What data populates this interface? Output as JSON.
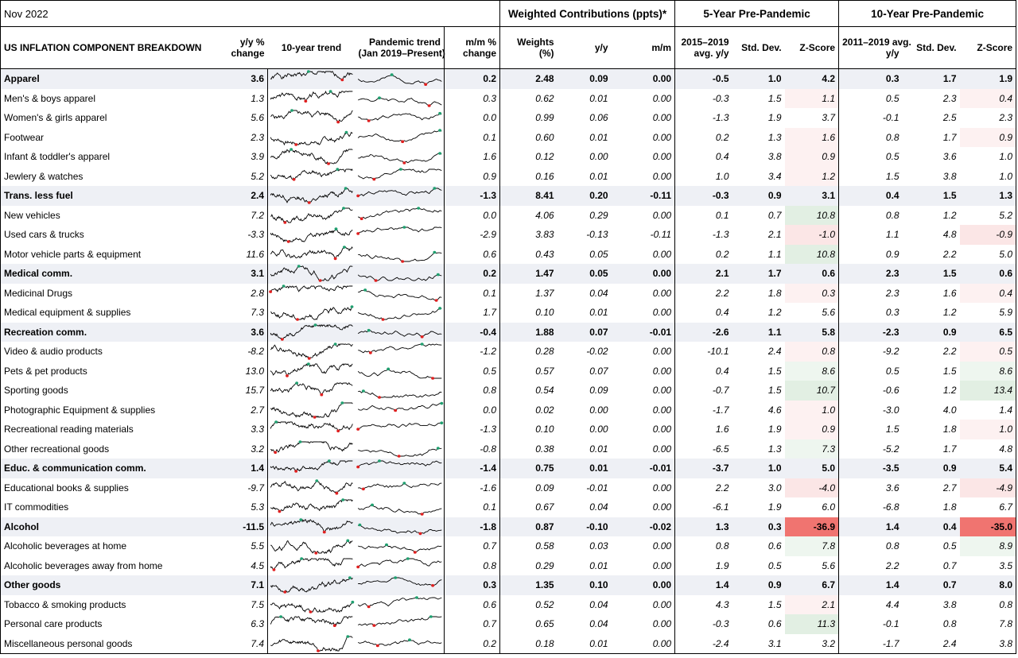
{
  "title": {
    "date": "Nov 2022",
    "group_weighted": "Weighted Contributions (ppts)*",
    "group_5y": "5-Year Pre-Pandemic",
    "group_10y": "10-Year Pre-Pandemic"
  },
  "headers": {
    "label": "US INFLATION COMPONENT BREAKDOWN",
    "yoy_l1": "y/y %",
    "yoy_l2": "change",
    "trend10": "10-year trend",
    "pand_l1": "Pandemic trend",
    "pand_l2": "(Jan 2019–Present)",
    "mom_l1": "m/m %",
    "mom_l2": "change",
    "weights_l1": "Weights",
    "weights_l2": "(%)",
    "wyy": "y/y",
    "wmm": "m/m",
    "avg5_l1": "2015–2019",
    "avg5_l2": "avg. y/y",
    "sd5": "Std. Dev.",
    "z5": "Z-Score",
    "avg10_l1": "2011–2019 avg.",
    "avg10_l2": "y/y",
    "sd10": "Std. Dev.",
    "z10": "Z-Score"
  },
  "z_colors": {
    "strong_red": "#f07470",
    "light_red": "#fbe6e6",
    "faint_red": "#fdf1f1",
    "light_green": "#e2efe3",
    "faint_green": "#eef6ef",
    "spark_line": "#000000",
    "spark_low": "#e02020",
    "spark_high": "#20a070"
  },
  "rows": [
    {
      "name": "Apparel",
      "type": "cat",
      "yoy": "3.6",
      "mom": "0.2",
      "w": "2.48",
      "wyy": "0.09",
      "wmm": "0.00",
      "a5": "-0.5",
      "s5": "1.0",
      "z5": "4.2",
      "a10": "0.3",
      "s10": "1.7",
      "z10": "1.9",
      "c5": "",
      "c10": ""
    },
    {
      "name": "Men's & boys apparel",
      "type": "sub",
      "yoy": "1.3",
      "mom": "0.3",
      "w": "0.62",
      "wyy": "0.01",
      "wmm": "0.00",
      "a5": "-0.3",
      "s5": "1.5",
      "z5": "1.1",
      "a10": "0.5",
      "s10": "2.3",
      "z10": "0.4",
      "c5": "fr",
      "c10": "fr"
    },
    {
      "name": "Women's & girls apparel",
      "type": "sub",
      "yoy": "5.6",
      "mom": "0.0",
      "w": "0.99",
      "wyy": "0.06",
      "wmm": "0.00",
      "a5": "-1.3",
      "s5": "1.9",
      "z5": "3.7",
      "a10": "-0.1",
      "s10": "2.5",
      "z10": "2.3",
      "c5": "",
      "c10": ""
    },
    {
      "name": "Footwear",
      "type": "sub",
      "yoy": "2.3",
      "mom": "0.1",
      "w": "0.60",
      "wyy": "0.01",
      "wmm": "0.00",
      "a5": "0.2",
      "s5": "1.3",
      "z5": "1.6",
      "a10": "0.8",
      "s10": "1.7",
      "z10": "0.9",
      "c5": "fr",
      "c10": "fr"
    },
    {
      "name": "Infant & toddler's apparel",
      "type": "sub",
      "yoy": "3.9",
      "mom": "1.6",
      "w": "0.12",
      "wyy": "0.00",
      "wmm": "0.00",
      "a5": "0.4",
      "s5": "3.8",
      "z5": "0.9",
      "a10": "0.5",
      "s10": "3.6",
      "z10": "1.0",
      "c5": "fr",
      "c10": ""
    },
    {
      "name": "Jewlery & watches",
      "type": "sub",
      "yoy": "5.2",
      "mom": "0.9",
      "w": "0.16",
      "wyy": "0.01",
      "wmm": "0.00",
      "a5": "1.0",
      "s5": "3.4",
      "z5": "1.2",
      "a10": "1.5",
      "s10": "3.8",
      "z10": "1.0",
      "c5": "fr",
      "c10": ""
    },
    {
      "name": "Trans. less fuel",
      "type": "cat",
      "yoy": "2.4",
      "mom": "-1.3",
      "w": "8.41",
      "wyy": "0.20",
      "wmm": "-0.11",
      "a5": "-0.3",
      "s5": "0.9",
      "z5": "3.1",
      "a10": "0.4",
      "s10": "1.5",
      "z10": "1.3",
      "c5": "",
      "c10": ""
    },
    {
      "name": "New vehicles",
      "type": "sub",
      "yoy": "7.2",
      "mom": "0.0",
      "w": "4.06",
      "wyy": "0.29",
      "wmm": "0.00",
      "a5": "0.1",
      "s5": "0.7",
      "z5": "10.8",
      "a10": "0.8",
      "s10": "1.2",
      "z10": "5.2",
      "c5": "lg",
      "c10": ""
    },
    {
      "name": "Used cars & trucks",
      "type": "sub",
      "yoy": "-3.3",
      "mom": "-2.9",
      "w": "3.83",
      "wyy": "-0.13",
      "wmm": "-0.11",
      "a5": "-1.3",
      "s5": "2.1",
      "z5": "-1.0",
      "a10": "1.1",
      "s10": "4.8",
      "z10": "-0.9",
      "c5": "lr",
      "c10": "lr"
    },
    {
      "name": "Motor vehicle parts & equipment",
      "type": "sub",
      "yoy": "11.6",
      "mom": "0.6",
      "w": "0.43",
      "wyy": "0.05",
      "wmm": "0.00",
      "a5": "0.2",
      "s5": "1.1",
      "z5": "10.8",
      "a10": "0.9",
      "s10": "2.2",
      "z10": "5.0",
      "c5": "lg",
      "c10": ""
    },
    {
      "name": "Medical comm.",
      "type": "cat",
      "yoy": "3.1",
      "mom": "0.2",
      "w": "1.47",
      "wyy": "0.05",
      "wmm": "0.00",
      "a5": "2.1",
      "s5": "1.7",
      "z5": "0.6",
      "a10": "2.3",
      "s10": "1.5",
      "z10": "0.6",
      "c5": "",
      "c10": ""
    },
    {
      "name": "Medicinal Drugs",
      "type": "sub",
      "yoy": "2.8",
      "mom": "0.1",
      "w": "1.37",
      "wyy": "0.04",
      "wmm": "0.00",
      "a5": "2.2",
      "s5": "1.8",
      "z5": "0.3",
      "a10": "2.3",
      "s10": "1.6",
      "z10": "0.4",
      "c5": "fr",
      "c10": "fr"
    },
    {
      "name": "Medical equipment & supplies",
      "type": "sub",
      "yoy": "7.3",
      "mom": "1.7",
      "w": "0.10",
      "wyy": "0.01",
      "wmm": "0.00",
      "a5": "0.4",
      "s5": "1.2",
      "z5": "5.6",
      "a10": "0.3",
      "s10": "1.2",
      "z10": "5.9",
      "c5": "",
      "c10": ""
    },
    {
      "name": "Recreation comm.",
      "type": "cat",
      "yoy": "3.6",
      "mom": "-0.4",
      "w": "1.88",
      "wyy": "0.07",
      "wmm": "-0.01",
      "a5": "-2.6",
      "s5": "1.1",
      "z5": "5.8",
      "a10": "-2.3",
      "s10": "0.9",
      "z10": "6.5",
      "c5": "",
      "c10": ""
    },
    {
      "name": "Video & audio products",
      "type": "sub",
      "yoy": "-8.2",
      "mom": "-1.2",
      "w": "0.28",
      "wyy": "-0.02",
      "wmm": "0.00",
      "a5": "-10.1",
      "s5": "2.4",
      "z5": "0.8",
      "a10": "-9.2",
      "s10": "2.2",
      "z10": "0.5",
      "c5": "fr",
      "c10": "fr"
    },
    {
      "name": "Pets & pet products",
      "type": "sub",
      "yoy": "13.0",
      "mom": "0.5",
      "w": "0.57",
      "wyy": "0.07",
      "wmm": "0.00",
      "a5": "0.4",
      "s5": "1.5",
      "z5": "8.6",
      "a10": "0.5",
      "s10": "1.5",
      "z10": "8.6",
      "c5": "fg",
      "c10": "fg"
    },
    {
      "name": "Sporting goods",
      "type": "sub",
      "yoy": "15.7",
      "mom": "0.8",
      "w": "0.54",
      "wyy": "0.09",
      "wmm": "0.00",
      "a5": "-0.7",
      "s5": "1.5",
      "z5": "10.7",
      "a10": "-0.6",
      "s10": "1.2",
      "z10": "13.4",
      "c5": "lg",
      "c10": "lg"
    },
    {
      "name": "Photographic Equipment & supplies",
      "type": "sub",
      "yoy": "2.7",
      "mom": "0.0",
      "w": "0.02",
      "wyy": "0.00",
      "wmm": "0.00",
      "a5": "-1.7",
      "s5": "4.6",
      "z5": "1.0",
      "a10": "-3.0",
      "s10": "4.0",
      "z10": "1.4",
      "c5": "fr",
      "c10": ""
    },
    {
      "name": "Recreational reading materials",
      "type": "sub",
      "yoy": "3.3",
      "mom": "-1.3",
      "w": "0.10",
      "wyy": "0.00",
      "wmm": "0.00",
      "a5": "1.6",
      "s5": "1.9",
      "z5": "0.9",
      "a10": "1.5",
      "s10": "1.8",
      "z10": "1.0",
      "c5": "fr",
      "c10": "fr"
    },
    {
      "name": "Other recreational goods",
      "type": "sub",
      "yoy": "3.2",
      "mom": "-0.8",
      "w": "0.38",
      "wyy": "0.01",
      "wmm": "0.00",
      "a5": "-6.5",
      "s5": "1.3",
      "z5": "7.3",
      "a10": "-5.2",
      "s10": "1.7",
      "z10": "4.8",
      "c5": "fg",
      "c10": ""
    },
    {
      "name": "Educ. & communication comm.",
      "type": "cat",
      "yoy": "1.4",
      "mom": "-1.4",
      "w": "0.75",
      "wyy": "0.01",
      "wmm": "-0.01",
      "a5": "-3.7",
      "s5": "1.0",
      "z5": "5.0",
      "a10": "-3.5",
      "s10": "0.9",
      "z10": "5.4",
      "c5": "",
      "c10": ""
    },
    {
      "name": "Educational books & supplies",
      "type": "sub",
      "yoy": "-9.7",
      "mom": "-1.6",
      "w": "0.09",
      "wyy": "-0.01",
      "wmm": "0.00",
      "a5": "2.2",
      "s5": "3.0",
      "z5": "-4.0",
      "a10": "3.6",
      "s10": "2.7",
      "z10": "-4.9",
      "c5": "lr",
      "c10": "lr"
    },
    {
      "name": "IT commodities",
      "type": "sub",
      "yoy": "5.3",
      "mom": "0.1",
      "w": "0.67",
      "wyy": "0.04",
      "wmm": "0.00",
      "a5": "-6.1",
      "s5": "1.9",
      "z5": "6.0",
      "a10": "-6.8",
      "s10": "1.8",
      "z10": "6.7",
      "c5": "",
      "c10": ""
    },
    {
      "name": "Alcohol",
      "type": "cat",
      "yoy": "-11.5",
      "mom": "-1.8",
      "w": "0.87",
      "wyy": "-0.10",
      "wmm": "-0.02",
      "a5": "1.3",
      "s5": "0.3",
      "z5": "-36.9",
      "a10": "1.4",
      "s10": "0.4",
      "z10": "-35.0",
      "c5": "sr",
      "c10": "sr"
    },
    {
      "name": "Alcoholic beverages at home",
      "type": "sub",
      "yoy": "5.5",
      "mom": "0.7",
      "w": "0.58",
      "wyy": "0.03",
      "wmm": "0.00",
      "a5": "0.8",
      "s5": "0.6",
      "z5": "7.8",
      "a10": "0.8",
      "s10": "0.5",
      "z10": "8.9",
      "c5": "fg",
      "c10": "fg"
    },
    {
      "name": "Alcoholic beverages away from home",
      "type": "sub",
      "yoy": "4.5",
      "mom": "0.8",
      "w": "0.29",
      "wyy": "0.01",
      "wmm": "0.00",
      "a5": "1.9",
      "s5": "0.5",
      "z5": "5.6",
      "a10": "2.2",
      "s10": "0.7",
      "z10": "3.5",
      "c5": "",
      "c10": ""
    },
    {
      "name": "Other goods",
      "type": "cat",
      "yoy": "7.1",
      "mom": "0.3",
      "w": "1.35",
      "wyy": "0.10",
      "wmm": "0.00",
      "a5": "1.4",
      "s5": "0.9",
      "z5": "6.7",
      "a10": "1.4",
      "s10": "0.7",
      "z10": "8.0",
      "c5": "",
      "c10": ""
    },
    {
      "name": "Tobacco & smoking products",
      "type": "sub",
      "yoy": "7.5",
      "mom": "0.6",
      "w": "0.52",
      "wyy": "0.04",
      "wmm": "0.00",
      "a5": "4.3",
      "s5": "1.5",
      "z5": "2.1",
      "a10": "4.4",
      "s10": "3.8",
      "z10": "0.8",
      "c5": "fr",
      "c10": ""
    },
    {
      "name": "Personal care products",
      "type": "sub",
      "yoy": "6.3",
      "mom": "0.7",
      "w": "0.65",
      "wyy": "0.04",
      "wmm": "0.00",
      "a5": "-0.3",
      "s5": "0.6",
      "z5": "11.3",
      "a10": "-0.1",
      "s10": "0.8",
      "z10": "7.8",
      "c5": "lg",
      "c10": ""
    },
    {
      "name": "Miscellaneous personal goods",
      "type": "sub",
      "yoy": "7.4",
      "mom": "0.2",
      "w": "0.18",
      "wyy": "0.01",
      "wmm": "0.00",
      "a5": "-2.4",
      "s5": "3.1",
      "z5": "3.2",
      "a10": "-1.7",
      "s10": "2.4",
      "z10": "3.8",
      "c5": "",
      "c10": ""
    }
  ]
}
